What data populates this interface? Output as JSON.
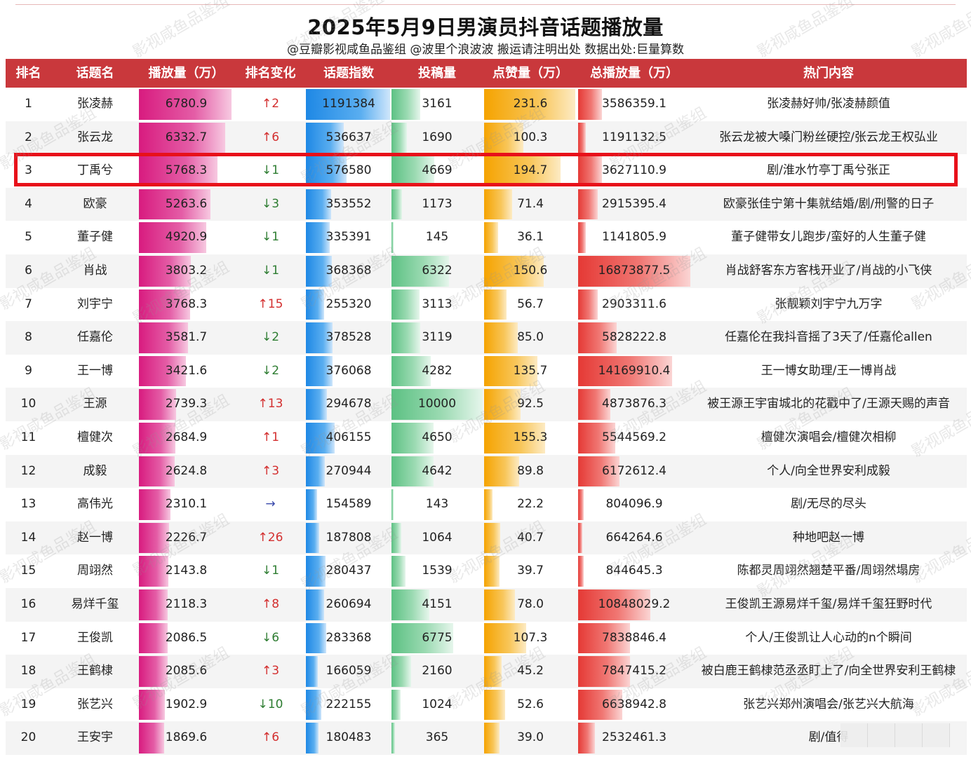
{
  "title": "2025年5月9日男演员抖音话题播放量",
  "subtitle": "@豆瓣影视咸鱼品鉴组 @波里个浪波波  搬运请注明出处  数据出处:巨量算数",
  "watermark": "影视咸鱼品鉴组",
  "columns": [
    "排名",
    "话题名",
    "播放量（万）",
    "排名变化",
    "话题指数",
    "投稿量",
    "点赞量（万）",
    "总播放量（万）",
    "热门内容"
  ],
  "highlight_rank": 3,
  "chart_data": {
    "type": "table",
    "rows": [
      {
        "rank": "1",
        "name": "张凌赫",
        "play": "6780.9",
        "change": "↑2",
        "dir": "up",
        "index": "1191384",
        "posts": "3161",
        "likes": "231.6",
        "total": "3586359.1",
        "hot": "张凌赫好帅/张凌赫颜值"
      },
      {
        "rank": "2",
        "name": "张云龙",
        "play": "6332.7",
        "change": "↑6",
        "dir": "up",
        "index": "536637",
        "posts": "1690",
        "likes": "100.3",
        "total": "1191132.5",
        "hot": "张云龙被大嗓门粉丝硬控/张云龙王权弘业"
      },
      {
        "rank": "3",
        "name": "丁禹兮",
        "play": "5768.3",
        "change": "↓1",
        "dir": "down",
        "index": "576580",
        "posts": "4669",
        "likes": "194.7",
        "total": "3627110.9",
        "hot": "剧/淮水竹亭丁禹兮张正"
      },
      {
        "rank": "4",
        "name": "欧豪",
        "play": "5263.6",
        "change": "↓3",
        "dir": "down",
        "index": "353552",
        "posts": "1173",
        "likes": "71.4",
        "total": "2915395.4",
        "hot": "欧豪张佳宁第十集就结婚/剧/刑警的日子"
      },
      {
        "rank": "5",
        "name": "董子健",
        "play": "4920.9",
        "change": "↓1",
        "dir": "down",
        "index": "335391",
        "posts": "145",
        "likes": "36.1",
        "total": "1141805.9",
        "hot": "董子健带女儿跑步/蛮好的人生董子健"
      },
      {
        "rank": "6",
        "name": "肖战",
        "play": "3803.2",
        "change": "↓1",
        "dir": "down",
        "index": "368368",
        "posts": "6322",
        "likes": "150.6",
        "total": "16873877.5",
        "hot": "肖战舒客东方客栈开业了/肖战的小飞侠"
      },
      {
        "rank": "7",
        "name": "刘宇宁",
        "play": "3768.3",
        "change": "↑15",
        "dir": "up",
        "index": "255320",
        "posts": "3113",
        "likes": "56.7",
        "total": "2903311.6",
        "hot": "张靓颖刘宇宁九万字"
      },
      {
        "rank": "8",
        "name": "任嘉伦",
        "play": "3581.7",
        "change": "↓2",
        "dir": "down",
        "index": "378528",
        "posts": "3119",
        "likes": "85.0",
        "total": "5828222.8",
        "hot": "任嘉伦在我抖音摇了3天了/任嘉伦allen"
      },
      {
        "rank": "9",
        "name": "王一博",
        "play": "3421.6",
        "change": "↓2",
        "dir": "down",
        "index": "376068",
        "posts": "4282",
        "likes": "135.7",
        "total": "14169910.4",
        "hot": "王一博女助理/王一博肖战"
      },
      {
        "rank": "10",
        "name": "王源",
        "play": "2739.3",
        "change": "↑13",
        "dir": "up",
        "index": "294678",
        "posts": "10000",
        "likes": "92.5",
        "total": "4873876.3",
        "hot": "被王源王宇宙城北的花戳中了/王源天赐的声音"
      },
      {
        "rank": "11",
        "name": "檀健次",
        "play": "2684.9",
        "change": "↑1",
        "dir": "up",
        "index": "406155",
        "posts": "4650",
        "likes": "155.3",
        "total": "5544569.2",
        "hot": "檀健次演唱会/檀健次相柳"
      },
      {
        "rank": "12",
        "name": "成毅",
        "play": "2624.8",
        "change": "↑3",
        "dir": "up",
        "index": "270944",
        "posts": "4642",
        "likes": "89.8",
        "total": "6172612.4",
        "hot": "个人/向全世界安利成毅"
      },
      {
        "rank": "13",
        "name": "高伟光",
        "play": "2310.1",
        "change": "→",
        "dir": "flat",
        "index": "154589",
        "posts": "143",
        "likes": "22.2",
        "total": "804096.9",
        "hot": "剧/无尽的尽头"
      },
      {
        "rank": "14",
        "name": "赵一博",
        "play": "2226.7",
        "change": "↑26",
        "dir": "up",
        "index": "187808",
        "posts": "1064",
        "likes": "40.7",
        "total": "664264.6",
        "hot": "种地吧赵一博"
      },
      {
        "rank": "15",
        "name": "周翊然",
        "play": "2143.8",
        "change": "↓1",
        "dir": "down",
        "index": "280437",
        "posts": "1539",
        "likes": "39.7",
        "total": "844645.3",
        "hot": "陈都灵周翊然翘楚平番/周翊然塌房"
      },
      {
        "rank": "16",
        "name": "易烊千玺",
        "play": "2118.3",
        "change": "↑8",
        "dir": "up",
        "index": "260694",
        "posts": "4151",
        "likes": "78.0",
        "total": "10848029.2",
        "hot": "王俊凯王源易烊千玺/易烊千玺狂野时代"
      },
      {
        "rank": "17",
        "name": "王俊凯",
        "play": "2086.5",
        "change": "↓6",
        "dir": "down",
        "index": "283368",
        "posts": "6775",
        "likes": "107.3",
        "total": "7838846.4",
        "hot": "个人/王俊凯让人心动的n个瞬间"
      },
      {
        "rank": "18",
        "name": "王鹤棣",
        "play": "2085.6",
        "change": "↑3",
        "dir": "up",
        "index": "166059",
        "posts": "2160",
        "likes": "45.2",
        "total": "7847415.2",
        "hot": "被白鹿王鹤棣范丞丞盯上了/向全世界安利王鹤棣"
      },
      {
        "rank": "19",
        "name": "张艺兴",
        "play": "1902.9",
        "change": "↓10",
        "dir": "down",
        "index": "222155",
        "posts": "1024",
        "likes": "52.6",
        "total": "6638942.8",
        "hot": "张艺兴郑州演唱会/张艺兴大航海"
      },
      {
        "rank": "20",
        "name": "王安宇",
        "play": "1869.6",
        "change": "↑6",
        "dir": "up",
        "index": "180483",
        "posts": "365",
        "likes": "39.0",
        "total": "2532461.3",
        "hot": "剧/值得"
      }
    ]
  }
}
